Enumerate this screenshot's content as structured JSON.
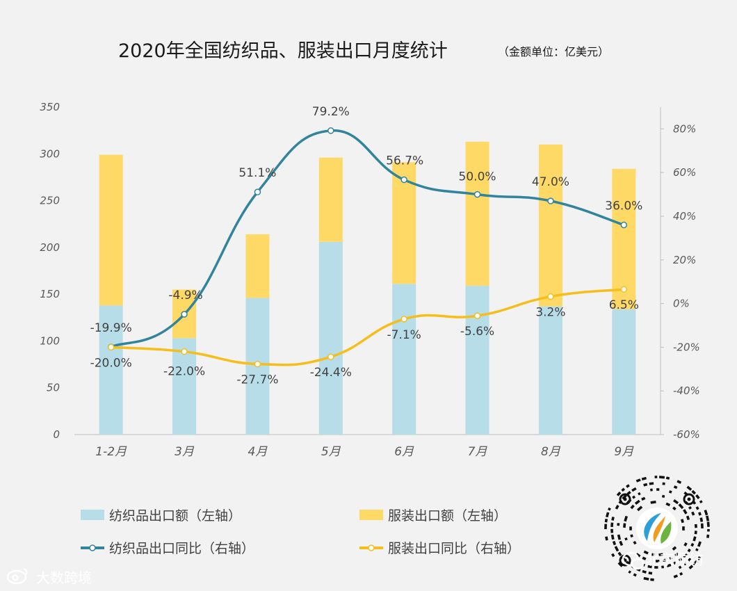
{
  "chart_data": {
    "type": "bar",
    "title": "2020年全国纺织品、服装出口月度统计",
    "unit_note": "（金额单位：亿美元）",
    "categories": [
      "1-2月",
      "3月",
      "4月",
      "5月",
      "6月",
      "7月",
      "8月",
      "9月"
    ],
    "left_axis": {
      "ylim": [
        0,
        350
      ],
      "ticks": [
        "0",
        "50",
        "100",
        "150",
        "200",
        "250",
        "300",
        "350"
      ]
    },
    "right_axis": {
      "ylim": [
        -60,
        90
      ],
      "ticks": [
        "-60%",
        "-40%",
        "-20%",
        "0%",
        "20%",
        "40%",
        "60%",
        "80%"
      ]
    },
    "series": [
      {
        "name": "纺织品出口额（左轴）",
        "type": "stacked-bar",
        "axis": "left",
        "color": "#b7dde8",
        "values": [
          138,
          103,
          146,
          206,
          161,
          159,
          137,
          134
        ]
      },
      {
        "name": "服装出口额（左轴）",
        "type": "stacked-bar",
        "axis": "left",
        "color": "#ffd966",
        "values": [
          161,
          52,
          68,
          90,
          130,
          154,
          173,
          150
        ]
      },
      {
        "name": "纺织品出口同比（右轴）",
        "type": "line",
        "axis": "right",
        "color": "#31849b",
        "values": [
          -19.9,
          -4.9,
          51.1,
          79.2,
          56.7,
          50.0,
          47.0,
          36.0
        ],
        "labels": [
          "-19.9%",
          "-4.9%",
          "51.1%",
          "79.2%",
          "56.7%",
          "50.0%",
          "47.0%",
          "36.0%"
        ]
      },
      {
        "name": "服装出口同比（右轴）",
        "type": "line",
        "axis": "right",
        "color": "#f5be1b",
        "values": [
          -20.0,
          -22.0,
          -27.7,
          -24.4,
          -7.1,
          -5.6,
          3.2,
          6.5
        ],
        "labels": [
          "-20.0%",
          "-22.0%",
          "-27.7%",
          "-24.4%",
          "-7.1%",
          "-5.6%",
          "3.2%",
          "6.5%"
        ]
      }
    ],
    "legend_position": "bottom"
  },
  "watermarks": {
    "bottom_left": "大数跨境",
    "bottom_left_icon": "weibo-icon",
    "bottom_right": "北京顺纺",
    "bottom_right_icon": "wechat-icon",
    "qr_code": "qr-code-icon"
  }
}
